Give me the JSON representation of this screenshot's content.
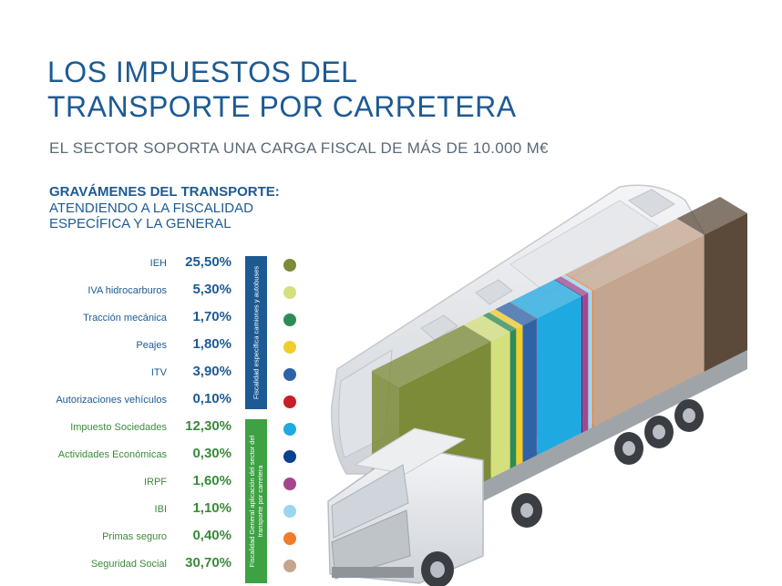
{
  "title": "LOS IMPUESTOS DEL TRANSPORTE POR CARRETERA",
  "subtitle": "EL SECTOR SOPORTA UNA CARGA FISCAL DE MÁS DE 10.000 M€",
  "section_title": "GRAVÁMENES DEL TRANSPORTE:",
  "section_subtitle": "ATENDIENDO A LA FISCALIDAD ESPECÍFICA Y LA GENERAL",
  "band_specific": "Fiscalidad específica camiones y autobuses",
  "band_general": "Fiscalidad General aplicación del sector del transporte por carretera",
  "chart_data": {
    "type": "bar",
    "categories": [
      "IEH",
      "IVA hidrocarburos",
      "Tracción mecánica",
      "Peajes",
      "ITV",
      "Autorizaciones vehículos",
      "Impuesto Sociedades",
      "Actividades Económicas",
      "IRPF",
      "IBI",
      "Primas seguro",
      "Seguridad Social"
    ],
    "values": [
      25.5,
      5.3,
      1.7,
      1.8,
      3.9,
      0.1,
      12.3,
      0.3,
      1.6,
      1.1,
      0.4,
      30.7
    ],
    "value_labels": [
      "25,50%",
      "5,30%",
      "1,70%",
      "1,80%",
      "3,90%",
      "0,10%",
      "12,30%",
      "0,30%",
      "1,60%",
      "1,10%",
      "0,40%",
      "30,70%"
    ],
    "groups": [
      "specific",
      "specific",
      "specific",
      "specific",
      "specific",
      "specific",
      "general",
      "general",
      "general",
      "general",
      "general",
      "general"
    ],
    "colors": [
      "#7b8b37",
      "#d4e07c",
      "#2e8b57",
      "#f2cd2a",
      "#2f63a8",
      "#c81e26",
      "#1fa9e1",
      "#0d3f8f",
      "#a5468d",
      "#9ad7ef",
      "#f07b28",
      "#c4a58f"
    ],
    "extra_segment_color": "#5b4a3a"
  }
}
